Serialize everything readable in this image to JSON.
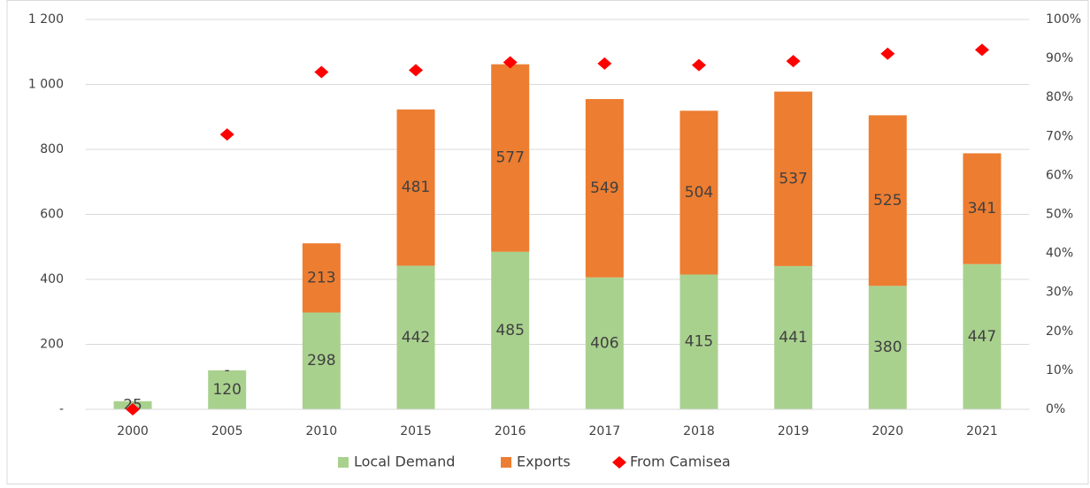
{
  "chart_data": {
    "type": "stacked-bar-scatter",
    "categories": [
      "2000",
      "2005",
      "2010",
      "2015",
      "2016",
      "2017",
      "2018",
      "2019",
      "2020",
      "2021"
    ],
    "series": [
      {
        "name": "Local Demand",
        "color": "#a9d18e",
        "type": "bar",
        "values": [
          25,
          120,
          298,
          442,
          485,
          406,
          415,
          441,
          380,
          447
        ]
      },
      {
        "name": "Exports",
        "color": "#ed7d31",
        "type": "bar",
        "values": [
          null,
          0,
          213,
          481,
          577,
          549,
          504,
          537,
          525,
          341
        ],
        "value_labels": [
          null,
          "-",
          "213",
          "481",
          "577",
          "549",
          "504",
          "537",
          "525",
          "341"
        ]
      },
      {
        "name": "From Camisea",
        "color": "#ff0000",
        "type": "scatter",
        "axis": "y2",
        "values": [
          0,
          70.5,
          86.5,
          87,
          89,
          88.7,
          88.3,
          89.3,
          91.2,
          92.2
        ]
      }
    ],
    "ylim": [
      0,
      1200
    ],
    "yticks": [
      {
        "value": 0,
        "label": "-"
      },
      200,
      400,
      600,
      800,
      {
        "value": 1000,
        "label": "1 000"
      },
      {
        "value": 1200,
        "label": "1 200"
      }
    ],
    "y2lim": [
      0,
      100
    ],
    "y2ticks": [
      {
        "value": 0,
        "label": "0%"
      },
      {
        "value": 10,
        "label": "10%"
      },
      {
        "value": 20,
        "label": "20%"
      },
      {
        "value": 30,
        "label": "30%"
      },
      {
        "value": 40,
        "label": "40%"
      },
      {
        "value": 50,
        "label": "50%"
      },
      {
        "value": 60,
        "label": "60%"
      },
      {
        "value": 70,
        "label": "70%"
      },
      {
        "value": 80,
        "label": "80%"
      },
      {
        "value": 90,
        "label": "90%"
      },
      {
        "value": 100,
        "label": "100%"
      }
    ],
    "grid": true,
    "legend": "bottom"
  }
}
